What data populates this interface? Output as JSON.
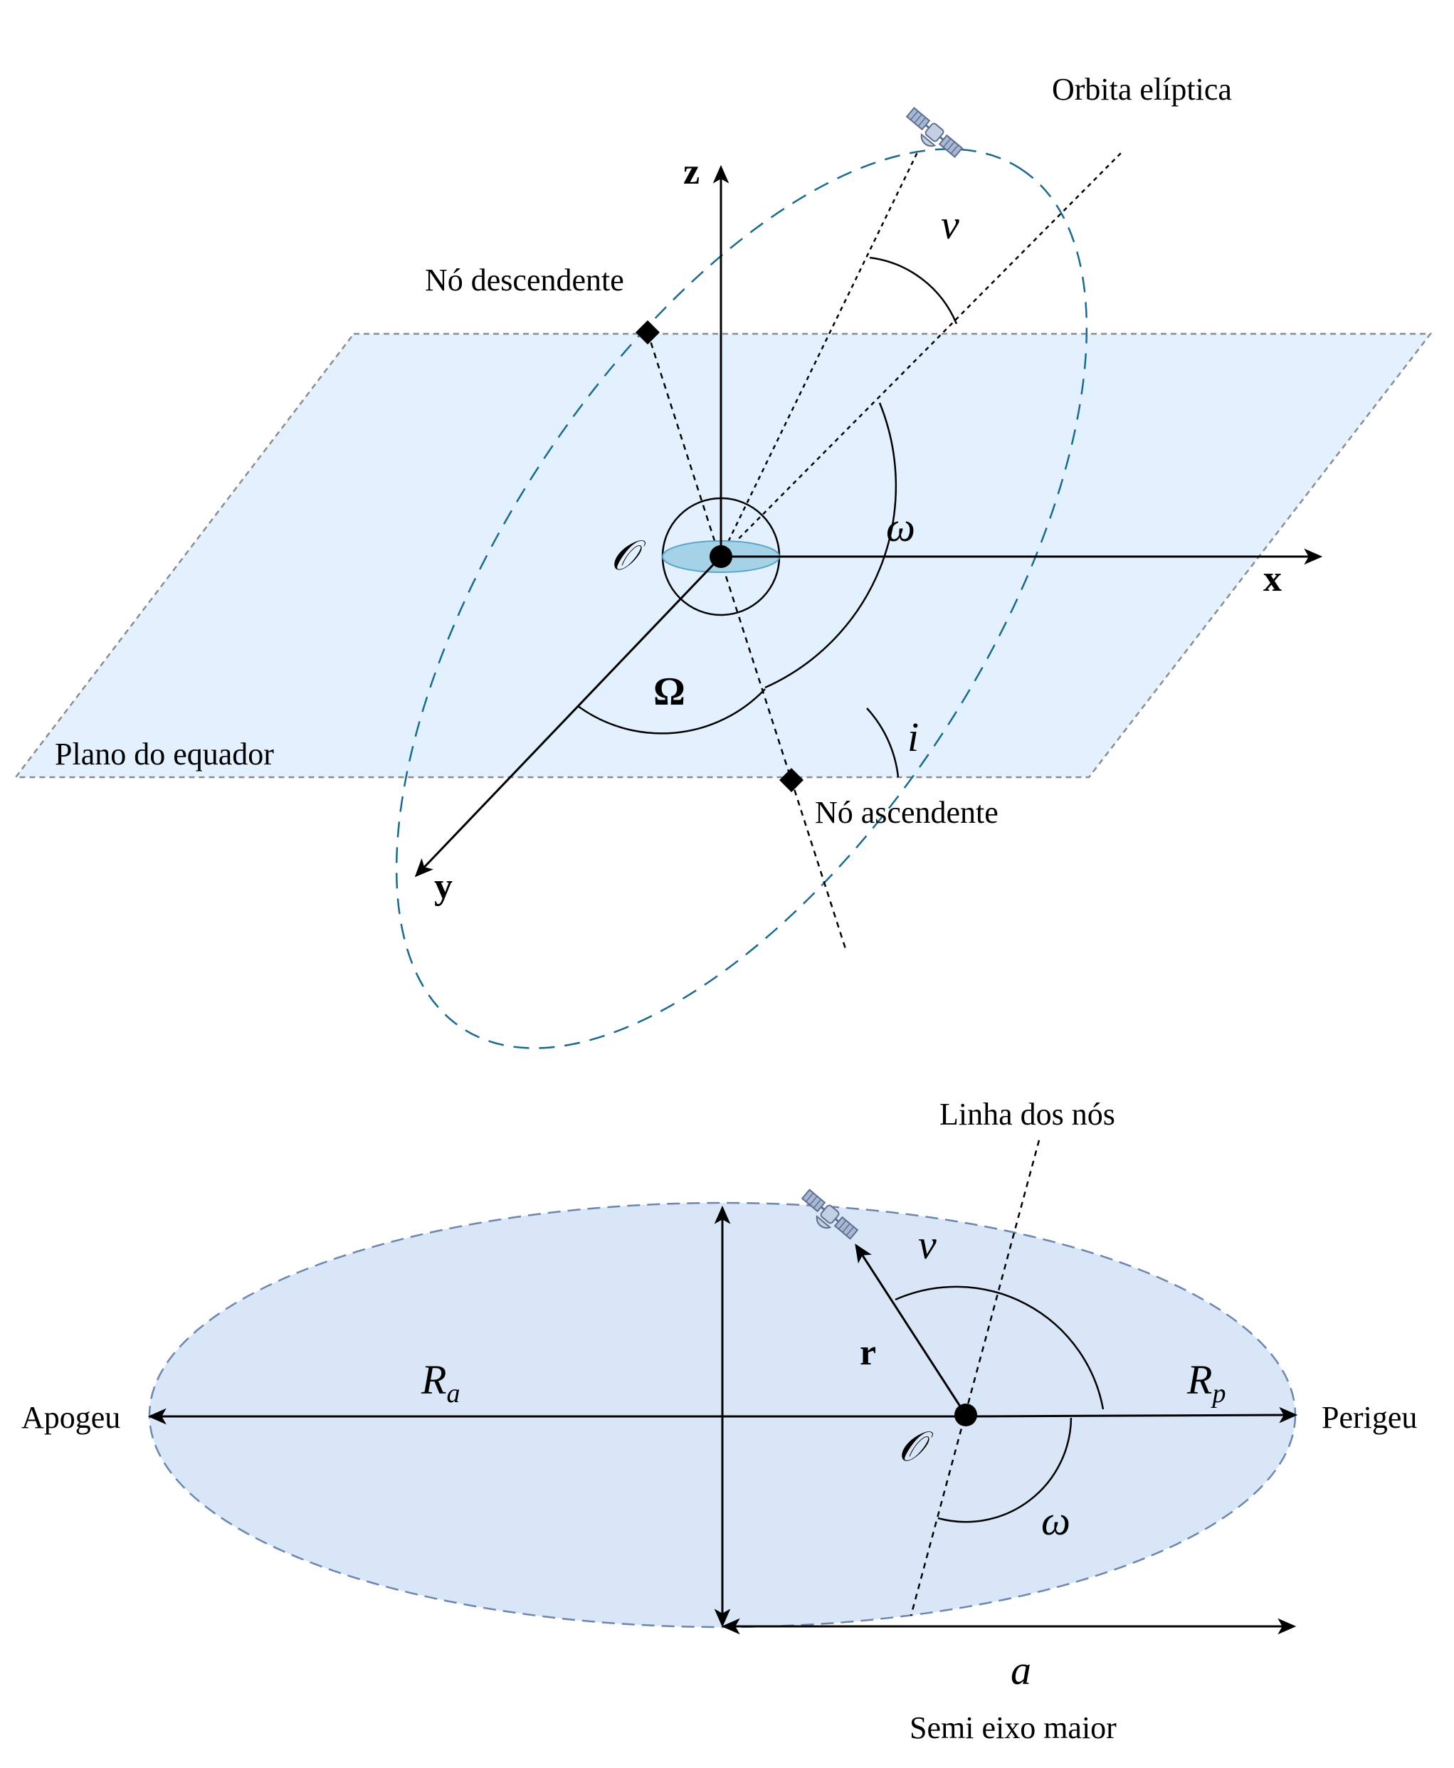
{
  "top": {
    "orbit_label": "Orbita elíptica",
    "descending_node_label": "Nó descendente",
    "ascending_node_label": "Nó ascendente",
    "equator_plane_label": "Plano do equador",
    "axis_z": "z",
    "axis_x": "x",
    "axis_y": "y",
    "origin": "𝒪",
    "nu": "ν",
    "omega": "ω",
    "Omega": "Ω",
    "incl": "i"
  },
  "bottom": {
    "nodes_line_label": "Linha dos nós",
    "apogee_label": "Apogeu",
    "perigee_label": "Perigeu",
    "Ra_main": "R",
    "Ra_sub": "a",
    "Rp_main": "R",
    "Rp_sub": "p",
    "r": "r",
    "nu": "ν",
    "origin": "𝒪",
    "omega": "ω",
    "a": "a",
    "semi_major_label": "Semi eixo maior"
  },
  "colors": {
    "plane_fill": "#e3f0fd",
    "plane_border": "#8c8c8c",
    "orbit_dash": "#1a6a8e",
    "earth_fill": "#a6d2e8",
    "bottom_ellipse_fill": "#d8e6f7",
    "bottom_ellipse_border": "#6c86b0",
    "satellite": "#9fb0cc"
  }
}
